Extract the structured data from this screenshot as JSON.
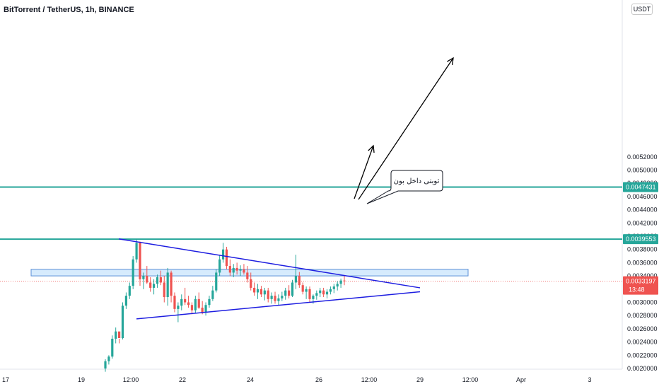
{
  "chart_data": {
    "type": "candlestick",
    "title": "BitTorrent / TetherUS, 1h, BINANCE",
    "currency": "USDT",
    "ylim": [
      0.0019,
      0.0054
    ],
    "y_ticks": [
      "0.0052000",
      "0.0050000",
      "0.0048000",
      "0.0046000",
      "0.0044000",
      "0.0042000",
      "0.0040000",
      "0.0038000",
      "0.0036000",
      "0.0034000",
      "0.0032000",
      "0.0030000",
      "0.0028000",
      "0.0026000",
      "0.0024000",
      "0.0022000",
      "0.0020000"
    ],
    "x_ticks": [
      "17",
      "19",
      "12:00",
      "22",
      "24",
      "26",
      "12:00",
      "29",
      "12:00",
      "Apr",
      "3"
    ],
    "horizontal_levels": [
      {
        "value": 0.0047431,
        "label": "0.0047431",
        "color": "#26a69a"
      },
      {
        "value": 0.0039553,
        "label": "0.0039553",
        "color": "#26a69a"
      }
    ],
    "last_price": {
      "label": "0.0033197",
      "countdown": "13:48",
      "color": "#ef5350"
    },
    "annotation": "ثوبتی داخل بون",
    "colors": {
      "up": "#26a69a",
      "down": "#ef5350",
      "trendline": "#1d1de0",
      "zone": "#bbdefb"
    },
    "candles_ohlc": [
      [
        0.002,
        0.00214,
        0.00195,
        0.00211
      ],
      [
        0.00211,
        0.0022,
        0.00206,
        0.00218
      ],
      [
        0.00218,
        0.0025,
        0.00215,
        0.00245
      ],
      [
        0.00245,
        0.00262,
        0.00238,
        0.00256
      ],
      [
        0.00256,
        0.00245,
        0.00238,
        0.00246
      ],
      [
        0.00246,
        0.003,
        0.00244,
        0.00295
      ],
      [
        0.00295,
        0.00315,
        0.0029,
        0.0031
      ],
      [
        0.0031,
        0.0033,
        0.00305,
        0.00325
      ],
      [
        0.00325,
        0.0037,
        0.0032,
        0.00365
      ],
      [
        0.00365,
        0.00396,
        0.0036,
        0.0039
      ],
      [
        0.0039,
        0.00392,
        0.00325,
        0.00335
      ],
      [
        0.00335,
        0.00345,
        0.0032,
        0.0034
      ],
      [
        0.0034,
        0.00355,
        0.00328,
        0.0033
      ],
      [
        0.0033,
        0.00338,
        0.00316,
        0.00322
      ],
      [
        0.00322,
        0.00335,
        0.00312,
        0.00328
      ],
      [
        0.00328,
        0.00342,
        0.00322,
        0.00338
      ],
      [
        0.00338,
        0.00348,
        0.00326,
        0.0033
      ],
      [
        0.0033,
        0.0034,
        0.003,
        0.00308
      ],
      [
        0.00308,
        0.00352,
        0.00295,
        0.00345
      ],
      [
        0.00345,
        0.00348,
        0.003,
        0.0031
      ],
      [
        0.0031,
        0.00315,
        0.00285,
        0.0029
      ],
      [
        0.0029,
        0.003,
        0.0027,
        0.00295
      ],
      [
        0.00295,
        0.00312,
        0.00288,
        0.00305
      ],
      [
        0.00305,
        0.00322,
        0.00296,
        0.003
      ],
      [
        0.003,
        0.0031,
        0.00292,
        0.00296
      ],
      [
        0.00296,
        0.003,
        0.00282,
        0.00288
      ],
      [
        0.00288,
        0.0031,
        0.00283,
        0.00305
      ],
      [
        0.00305,
        0.00315,
        0.0029,
        0.00292
      ],
      [
        0.00292,
        0.00302,
        0.00282,
        0.00285
      ],
      [
        0.00285,
        0.003,
        0.0028,
        0.00296
      ],
      [
        0.00296,
        0.0031,
        0.00292,
        0.00305
      ],
      [
        0.00305,
        0.00325,
        0.00302,
        0.00318
      ],
      [
        0.00318,
        0.0035,
        0.00315,
        0.00345
      ],
      [
        0.00345,
        0.00372,
        0.0034,
        0.00365
      ],
      [
        0.00365,
        0.0039,
        0.0036,
        0.0038
      ],
      [
        0.0038,
        0.00384,
        0.0035,
        0.00355
      ],
      [
        0.00355,
        0.00365,
        0.0034,
        0.00345
      ],
      [
        0.00345,
        0.00358,
        0.00338,
        0.00352
      ],
      [
        0.00352,
        0.0036,
        0.00342,
        0.00348
      ],
      [
        0.00348,
        0.00356,
        0.0034,
        0.0035
      ],
      [
        0.0035,
        0.00358,
        0.00342,
        0.00345
      ],
      [
        0.00345,
        0.00355,
        0.0033,
        0.00335
      ],
      [
        0.00335,
        0.00345,
        0.00318,
        0.00322
      ],
      [
        0.00322,
        0.0033,
        0.0031,
        0.00315
      ],
      [
        0.00315,
        0.00328,
        0.00305,
        0.0032
      ],
      [
        0.0032,
        0.00325,
        0.00308,
        0.00312
      ],
      [
        0.00312,
        0.00322,
        0.00303,
        0.00318
      ],
      [
        0.00318,
        0.00322,
        0.003,
        0.00305
      ],
      [
        0.00305,
        0.00315,
        0.00298,
        0.0031
      ],
      [
        0.0031,
        0.00316,
        0.00298,
        0.00302
      ],
      [
        0.00302,
        0.00312,
        0.00296,
        0.00306
      ],
      [
        0.00306,
        0.00316,
        0.00302,
        0.0031
      ],
      [
        0.0031,
        0.00322,
        0.00304,
        0.00318
      ],
      [
        0.00318,
        0.00326,
        0.00306,
        0.0031
      ],
      [
        0.0031,
        0.00334,
        0.00308,
        0.0033
      ],
      [
        0.0033,
        0.00372,
        0.0032,
        0.0034
      ],
      [
        0.0034,
        0.00346,
        0.00322,
        0.00326
      ],
      [
        0.00326,
        0.0033,
        0.00312,
        0.00316
      ],
      [
        0.00316,
        0.00324,
        0.00305,
        0.0032
      ],
      [
        0.0032,
        0.00324,
        0.003,
        0.00305
      ],
      [
        0.00305,
        0.00312,
        0.00298,
        0.0031
      ],
      [
        0.0031,
        0.00318,
        0.00304,
        0.00314
      ],
      [
        0.00314,
        0.00322,
        0.00308,
        0.00318
      ],
      [
        0.00318,
        0.00322,
        0.00308,
        0.00312
      ],
      [
        0.00312,
        0.0032,
        0.00306,
        0.00316
      ],
      [
        0.00316,
        0.00324,
        0.00312,
        0.0032
      ],
      [
        0.0032,
        0.00328,
        0.00314,
        0.00324
      ],
      [
        0.00324,
        0.00332,
        0.00318,
        0.00328
      ],
      [
        0.00328,
        0.00336,
        0.00322,
        0.00333
      ],
      [
        0.00333,
        0.0034,
        0.00326,
        0.00332
      ]
    ]
  }
}
